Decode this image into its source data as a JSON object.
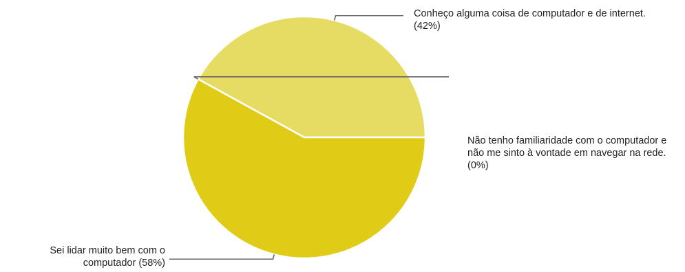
{
  "chart_data": {
    "type": "pie",
    "slices": [
      {
        "label": "Conheço alguma coisa de computador e de internet. (42%)",
        "value": 42,
        "color": "#e6db63"
      },
      {
        "label": "Não tenho familiaridade com o computador e não me sinto à vontade em navegar na rede. (0%)",
        "value": 0,
        "color": "#d8c52c"
      },
      {
        "label": "Sei lidar muito bem com o computador (58%)",
        "value": 58,
        "color": "#e0cc16"
      }
    ],
    "leader_line_color": "#666666",
    "slice_border_color": "#ffffff"
  }
}
